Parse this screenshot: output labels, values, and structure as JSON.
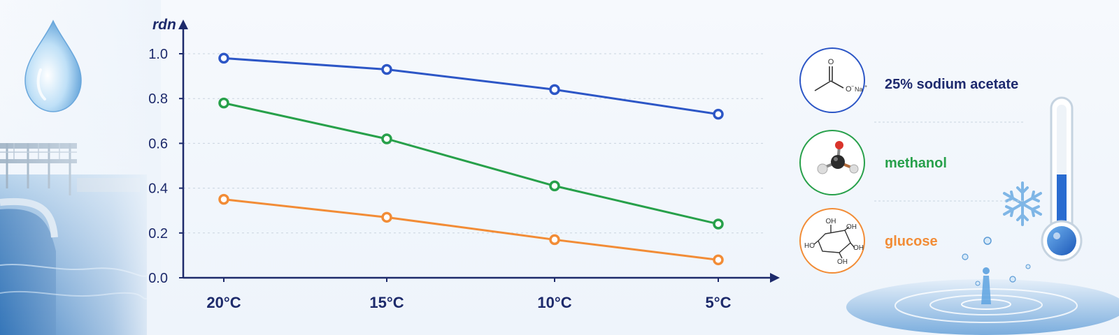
{
  "colors": {
    "sodium_acetate": "#2c56c6",
    "methanol": "#27a04a",
    "glucose": "#f28c36",
    "axis": "#1d2a6b",
    "grid": "#c9d3df"
  },
  "chart_data": {
    "type": "line",
    "ylabel": "rdn",
    "xlabel": "",
    "categories": [
      "20°C",
      "15°C",
      "10°C",
      "5°C"
    ],
    "ylim": [
      0.0,
      1.0
    ],
    "yticks": [
      "0.0",
      "0.2",
      "0.4",
      "0.6",
      "0.8",
      "1.0"
    ],
    "grid": true,
    "legend_placement": "right",
    "series": [
      {
        "name": "25% sodium acetate",
        "color": "#2c56c6",
        "values": [
          0.98,
          0.93,
          0.84,
          0.73
        ]
      },
      {
        "name": "methanol",
        "color": "#27a04a",
        "values": [
          0.78,
          0.62,
          0.41,
          0.24
        ]
      },
      {
        "name": "glucose",
        "color": "#f28c36",
        "values": [
          0.35,
          0.27,
          0.17,
          0.08
        ]
      }
    ]
  },
  "legend": {
    "icons": [
      "sodium-acetate-structure-icon",
      "methanol-molecule-icon",
      "glucose-structure-icon"
    ],
    "structure_labels": {
      "acetate_o": "O",
      "acetate_ion": "O",
      "acetate_na": "Na",
      "glucose_oh": "OH",
      "glucose_ho": "HO"
    }
  },
  "decorations": [
    "water-drop-icon",
    "treatment-tank-illustration",
    "snowflake-icon",
    "thermometer-icon",
    "water-splash-icon"
  ]
}
